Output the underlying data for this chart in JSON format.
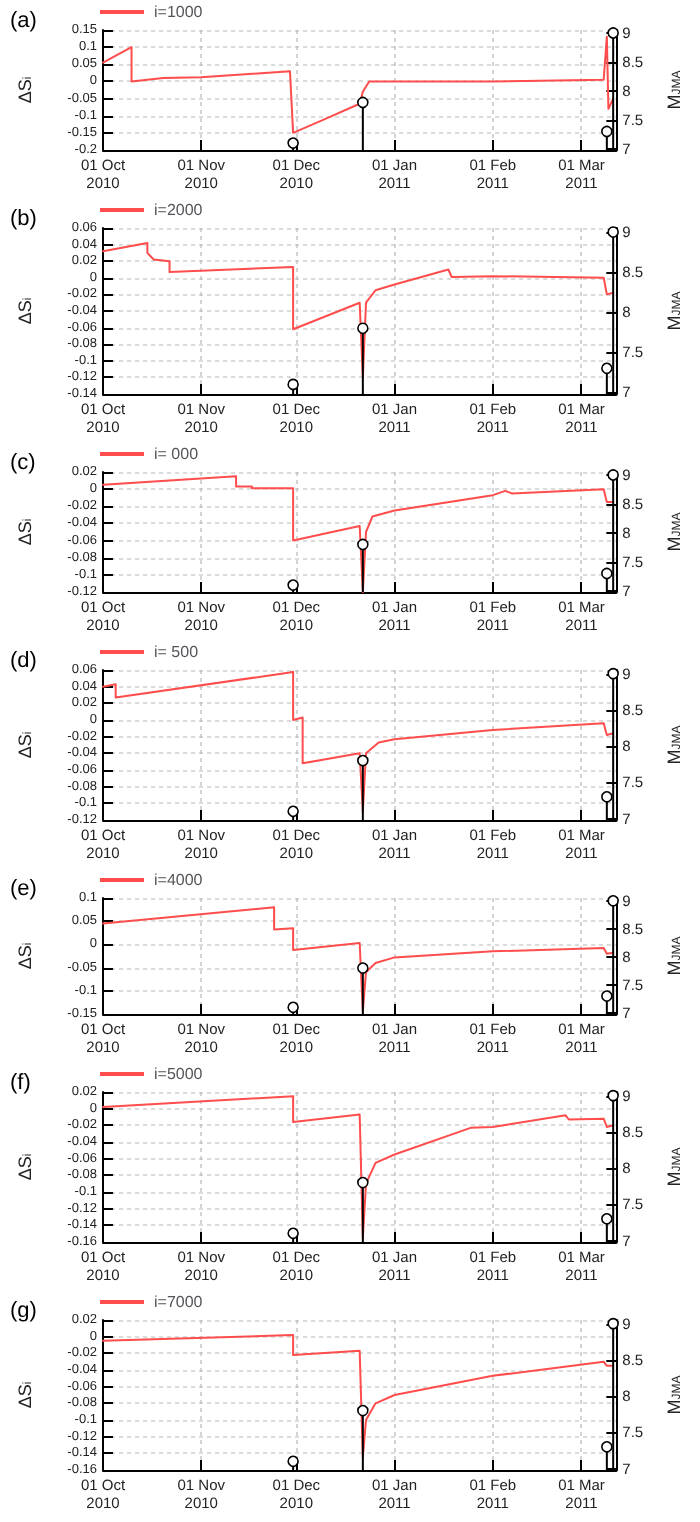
{
  "chart_data": [
    {
      "type": "line",
      "title": "(a)",
      "ylabel": "ΔS$_{i}$",
      "y2label": "M$_{JMA}$",
      "grid": true,
      "legend": "top left",
      "xlim": [
        "2010-10-01",
        "2011-03-12"
      ],
      "xticks": [
        {
          "value": "2010-10-01",
          "label": "01 Oct\n2010"
        },
        {
          "value": "2010-11-01",
          "label": "01 Nov\n2010"
        },
        {
          "value": "2010-12-01",
          "label": "01 Dec\n2010"
        },
        {
          "value": "2011-01-01",
          "label": "01 Jan\n2011"
        },
        {
          "value": "2011-02-01",
          "label": "01 Feb\n2011"
        },
        {
          "value": "2011-03-01",
          "label": "01 Mar\n2011"
        }
      ],
      "ylim": [
        -0.2,
        0.15
      ],
      "yticks": [
        -0.2,
        -0.15,
        -0.1,
        -0.05,
        0,
        0.05,
        0.1,
        0.15
      ],
      "y2lim": [
        6.98,
        9.05
      ],
      "y2ticks": [
        7,
        7.5,
        8,
        8.5,
        9
      ],
      "series": [
        {
          "name": "i=1000",
          "color": "#ff4c4c",
          "marker": "none",
          "line_style": "solid",
          "x": [
            "2010-10-01",
            "2010-10-10",
            "2010-10-10",
            "2010-10-20",
            "2010-11-01",
            "2010-11-29",
            "2010-11-30",
            "2010-12-10",
            "2010-12-21",
            "2010-12-22",
            "2010-12-24",
            "2011-02-01",
            "2011-03-08",
            "2011-03-09",
            "2011-03-09T12:00",
            "2011-03-11"
          ],
          "values": [
            0.055,
            0.1,
            0.0,
            0.01,
            0.012,
            0.03,
            -0.15,
            -0.11,
            -0.065,
            -0.03,
            0,
            0,
            0.005,
            0.13,
            -0.08,
            -0.05
          ]
        },
        {
          "type": "lollipop",
          "axis": "y2",
          "color": "#000000",
          "marker": "circle",
          "x": [
            "2010-11-30",
            "2010-12-22",
            "2011-03-09",
            "2011-03-11"
          ],
          "values": [
            7.1,
            7.8,
            7.3,
            9.0
          ]
        }
      ]
    },
    {
      "type": "line",
      "title": "(b)",
      "ylabel": "ΔS$_{i}$",
      "y2label": "M$_{JMA}$",
      "grid": true,
      "legend": "top left",
      "xlim": [
        "2010-10-01",
        "2011-03-12"
      ],
      "xticks": [
        {
          "value": "2010-10-01",
          "label": "01 Oct\n2010"
        },
        {
          "value": "2010-11-01",
          "label": "01 Nov\n2010"
        },
        {
          "value": "2010-12-01",
          "label": "01 Dec\n2010"
        },
        {
          "value": "2011-01-01",
          "label": "01 Jan\n2011"
        },
        {
          "value": "2011-02-01",
          "label": "01 Feb\n2011"
        },
        {
          "value": "2011-03-01",
          "label": "01 Mar\n2011"
        }
      ],
      "ylim": [
        -0.14,
        0.06
      ],
      "yticks": [
        -0.14,
        -0.12,
        -0.1,
        -0.08,
        -0.06,
        -0.04,
        -0.02,
        0,
        0.02,
        0.04,
        0.06
      ],
      "y2lim": [
        6.98,
        9.05
      ],
      "y2ticks": [
        7,
        7.5,
        8,
        8.5,
        9
      ],
      "series": [
        {
          "name": "i=2000",
          "color": "#ff4c4c",
          "marker": "none",
          "line_style": "solid",
          "x": [
            "2010-10-01",
            "2010-10-15",
            "2010-10-15",
            "2010-10-17",
            "2010-10-22",
            "2010-10-22",
            "2010-11-30",
            "2010-11-30",
            "2010-12-21",
            "2010-12-22",
            "2010-12-23",
            "2010-12-26",
            "2011-01-01",
            "2011-01-18",
            "2011-01-19",
            "2011-02-01",
            "2011-03-08",
            "2011-03-09",
            "2011-03-11"
          ],
          "values": [
            0.032,
            0.042,
            0.03,
            0.022,
            0.02,
            0.007,
            0.013,
            -0.062,
            -0.03,
            -0.12,
            -0.03,
            -0.015,
            -0.008,
            0.01,
            0.001,
            0.002,
            0.0,
            -0.02,
            -0.018
          ]
        },
        {
          "type": "lollipop",
          "axis": "y2",
          "color": "#000000",
          "marker": "circle",
          "x": [
            "2010-11-30",
            "2010-12-22",
            "2011-03-09",
            "2011-03-11"
          ],
          "values": [
            7.1,
            7.8,
            7.3,
            9.0
          ]
        }
      ]
    },
    {
      "type": "line",
      "title": "(c)",
      "ylabel": "ΔS$_{i}$",
      "y2label": "M$_{JMA}$",
      "grid": true,
      "legend": "top left",
      "xlim": [
        "2010-10-01",
        "2011-03-12"
      ],
      "xticks": [
        {
          "value": "2010-10-01",
          "label": "01 Oct\n2010"
        },
        {
          "value": "2010-11-01",
          "label": "01 Nov\n2010"
        },
        {
          "value": "2010-12-01",
          "label": "01 Dec\n2010"
        },
        {
          "value": "2011-01-01",
          "label": "01 Jan\n2011"
        },
        {
          "value": "2011-02-01",
          "label": "01 Feb\n2011"
        },
        {
          "value": "2011-03-01",
          "label": "01 Mar\n2011"
        }
      ],
      "ylim": [
        -0.12,
        0.02
      ],
      "yticks": [
        -0.12,
        -0.1,
        -0.08,
        -0.06,
        -0.04,
        -0.02,
        0,
        0.02
      ],
      "y2lim": [
        6.98,
        9.05
      ],
      "y2ticks": [
        7,
        7.5,
        8,
        8.5,
        9
      ],
      "series": [
        {
          "name": "i= 000",
          "color": "#ff4c4c",
          "marker": "none",
          "line_style": "solid",
          "x": [
            "2010-10-01",
            "2010-11-12",
            "2010-11-12",
            "2010-11-17",
            "2010-11-17",
            "2010-11-30",
            "2010-11-30",
            "2010-12-21",
            "2010-12-22",
            "2010-12-23",
            "2010-12-25",
            "2011-01-01",
            "2011-02-01",
            "2011-02-05",
            "2011-02-07",
            "2011-03-08",
            "2011-03-09",
            "2011-03-11"
          ],
          "values": [
            0.005,
            0.015,
            0.003,
            0.003,
            0.001,
            0.001,
            -0.06,
            -0.043,
            -0.12,
            -0.05,
            -0.032,
            -0.025,
            -0.007,
            -0.002,
            -0.005,
            0.0,
            -0.015,
            -0.015
          ]
        },
        {
          "type": "lollipop",
          "axis": "y2",
          "color": "#000000",
          "marker": "circle",
          "x": [
            "2010-11-30",
            "2010-12-22",
            "2011-03-09",
            "2011-03-11"
          ],
          "values": [
            7.1,
            7.8,
            7.3,
            9.0
          ]
        }
      ]
    },
    {
      "type": "line",
      "title": "(d)",
      "ylabel": "ΔS$_{i}$",
      "y2label": "M$_{JMA}$",
      "grid": true,
      "legend": "top left",
      "xlim": [
        "2010-10-01",
        "2011-03-12"
      ],
      "xticks": [
        {
          "value": "2010-10-01",
          "label": "01 Oct\n2010"
        },
        {
          "value": "2010-11-01",
          "label": "01 Nov\n2010"
        },
        {
          "value": "2010-12-01",
          "label": "01 Dec\n2010"
        },
        {
          "value": "2011-01-01",
          "label": "01 Jan\n2011"
        },
        {
          "value": "2011-02-01",
          "label": "01 Feb\n2011"
        },
        {
          "value": "2011-03-01",
          "label": "01 Mar\n2011"
        }
      ],
      "ylim": [
        -0.12,
        0.06
      ],
      "yticks": [
        -0.12,
        -0.1,
        -0.08,
        -0.06,
        -0.04,
        -0.02,
        0,
        0.02,
        0.04,
        0.06
      ],
      "y2lim": [
        6.98,
        9.05
      ],
      "y2ticks": [
        7,
        7.5,
        8,
        8.5,
        9
      ],
      "series": [
        {
          "name": "i= 500",
          "color": "#ff4c4c",
          "marker": "none",
          "line_style": "solid",
          "x": [
            "2010-10-01",
            "2010-10-05",
            "2010-10-05",
            "2010-11-29",
            "2010-11-30",
            "2010-11-30",
            "2010-12-03",
            "2010-12-03",
            "2010-12-21",
            "2010-12-22",
            "2010-12-23",
            "2010-12-27",
            "2011-01-01",
            "2011-02-01",
            "2011-03-08",
            "2011-03-09",
            "2011-03-11"
          ],
          "values": [
            0.04,
            0.043,
            0.027,
            0.057,
            0.058,
            0.0,
            0.003,
            -0.052,
            -0.04,
            -0.11,
            -0.04,
            -0.027,
            -0.023,
            -0.012,
            -0.004,
            -0.018,
            -0.016
          ]
        },
        {
          "type": "lollipop",
          "axis": "y2",
          "color": "#000000",
          "marker": "circle",
          "x": [
            "2010-11-30",
            "2010-12-22",
            "2011-03-09",
            "2011-03-11"
          ],
          "values": [
            7.1,
            7.8,
            7.3,
            9.0
          ]
        }
      ]
    },
    {
      "type": "line",
      "title": "(e)",
      "ylabel": "ΔS$_{i}$",
      "y2label": "M$_{JMA}$",
      "grid": true,
      "legend": "top left",
      "xlim": [
        "2010-10-01",
        "2011-03-12"
      ],
      "xticks": [
        {
          "value": "2010-10-01",
          "label": "01 Oct\n2010"
        },
        {
          "value": "2010-11-01",
          "label": "01 Nov\n2010"
        },
        {
          "value": "2010-12-01",
          "label": "01 Dec\n2010"
        },
        {
          "value": "2011-01-01",
          "label": "01 Jan\n2011"
        },
        {
          "value": "2011-02-01",
          "label": "01 Feb\n2011"
        },
        {
          "value": "2011-03-01",
          "label": "01 Mar\n2011"
        }
      ],
      "ylim": [
        -0.15,
        0.1
      ],
      "yticks": [
        -0.15,
        -0.1,
        -0.05,
        0,
        0.05,
        0.1
      ],
      "y2lim": [
        6.98,
        9.05
      ],
      "y2ticks": [
        7,
        7.5,
        8,
        8.5,
        9
      ],
      "series": [
        {
          "name": "i=4000",
          "color": "#ff4c4c",
          "marker": "none",
          "line_style": "solid",
          "x": [
            "2010-10-01",
            "2010-11-24",
            "2010-11-24",
            "2010-11-30",
            "2010-11-30",
            "2010-12-21",
            "2010-12-22",
            "2010-12-23",
            "2010-12-26",
            "2011-01-01",
            "2011-02-01",
            "2011-03-08",
            "2011-03-09",
            "2011-03-11"
          ],
          "values": [
            0.045,
            0.08,
            0.032,
            0.035,
            -0.012,
            0.003,
            -0.145,
            -0.06,
            -0.04,
            -0.028,
            -0.015,
            -0.008,
            -0.02,
            -0.018
          ]
        },
        {
          "type": "lollipop",
          "axis": "y2",
          "color": "#000000",
          "marker": "circle",
          "x": [
            "2010-11-30",
            "2010-12-22",
            "2011-03-09",
            "2011-03-11"
          ],
          "values": [
            7.1,
            7.8,
            7.3,
            9.0
          ]
        }
      ]
    },
    {
      "type": "line",
      "title": "(f)",
      "ylabel": "ΔS$_{i}$",
      "y2label": "M$_{JMA}$",
      "grid": true,
      "legend": "top left",
      "xlim": [
        "2010-10-01",
        "2011-03-12"
      ],
      "xticks": [
        {
          "value": "2010-10-01",
          "label": "01 Oct\n2010"
        },
        {
          "value": "2010-11-01",
          "label": "01 Nov\n2010"
        },
        {
          "value": "2010-12-01",
          "label": "01 Dec\n2010"
        },
        {
          "value": "2011-01-01",
          "label": "01 Jan\n2011"
        },
        {
          "value": "2011-02-01",
          "label": "01 Feb\n2011"
        },
        {
          "value": "2011-03-01",
          "label": "01 Mar\n2011"
        }
      ],
      "ylim": [
        -0.16,
        0.02
      ],
      "yticks": [
        -0.16,
        -0.14,
        -0.12,
        -0.1,
        -0.08,
        -0.06,
        -0.04,
        -0.02,
        0,
        0.02
      ],
      "y2lim": [
        6.98,
        9.05
      ],
      "y2ticks": [
        7,
        7.5,
        8,
        8.5,
        9
      ],
      "series": [
        {
          "name": "i=5000",
          "color": "#ff4c4c",
          "marker": "none",
          "line_style": "solid",
          "x": [
            "2010-10-01",
            "2010-11-30",
            "2010-11-30",
            "2010-12-21",
            "2010-12-22",
            "2010-12-23",
            "2010-12-26",
            "2011-01-01",
            "2011-01-25",
            "2011-02-01",
            "2011-02-24",
            "2011-02-25",
            "2011-03-08",
            "2011-03-09",
            "2011-03-11"
          ],
          "values": [
            0.002,
            0.015,
            -0.016,
            -0.007,
            -0.155,
            -0.09,
            -0.065,
            -0.055,
            -0.023,
            -0.022,
            -0.008,
            -0.013,
            -0.012,
            -0.022,
            -0.02
          ]
        },
        {
          "type": "lollipop",
          "axis": "y2",
          "color": "#000000",
          "marker": "circle",
          "x": [
            "2010-11-30",
            "2010-12-22",
            "2011-03-09",
            "2011-03-11"
          ],
          "values": [
            7.1,
            7.8,
            7.3,
            9.0
          ]
        }
      ]
    },
    {
      "type": "line",
      "title": "(g)",
      "ylabel": "ΔS$_{i}$",
      "y2label": "M$_{JMA}$",
      "grid": true,
      "legend": "top left",
      "xlim": [
        "2010-10-01",
        "2011-03-12"
      ],
      "xticks": [
        {
          "value": "2010-10-01",
          "label": "01 Oct\n2010"
        },
        {
          "value": "2010-11-01",
          "label": "01 Nov\n2010"
        },
        {
          "value": "2010-12-01",
          "label": "01 Dec\n2010"
        },
        {
          "value": "2011-01-01",
          "label": "01 Jan\n2011"
        },
        {
          "value": "2011-02-01",
          "label": "01 Feb\n2011"
        },
        {
          "value": "2011-03-01",
          "label": "01 Mar\n2011"
        }
      ],
      "ylim": [
        -0.16,
        0.02
      ],
      "yticks": [
        -0.16,
        -0.14,
        -0.12,
        -0.1,
        -0.08,
        -0.06,
        -0.04,
        -0.02,
        0,
        0.02
      ],
      "y2lim": [
        6.98,
        9.05
      ],
      "y2ticks": [
        7,
        7.5,
        8,
        8.5,
        9
      ],
      "series": [
        {
          "name": "i=7000",
          "color": "#ff4c4c",
          "marker": "none",
          "line_style": "solid",
          "x": [
            "2010-10-01",
            "2010-11-30",
            "2010-11-30",
            "2010-12-21",
            "2010-12-22",
            "2010-12-23",
            "2010-12-26",
            "2011-01-01",
            "2011-02-01",
            "2011-03-08",
            "2011-03-09",
            "2011-03-11"
          ],
          "values": [
            -0.005,
            0.002,
            -0.022,
            -0.017,
            -0.145,
            -0.1,
            -0.08,
            -0.07,
            -0.047,
            -0.03,
            -0.035,
            -0.035
          ]
        },
        {
          "type": "lollipop",
          "axis": "y2",
          "color": "#000000",
          "marker": "circle",
          "x": [
            "2010-11-30",
            "2010-12-22",
            "2011-03-09",
            "2011-03-11"
          ],
          "values": [
            7.1,
            7.8,
            7.3,
            9.0
          ]
        }
      ]
    }
  ]
}
